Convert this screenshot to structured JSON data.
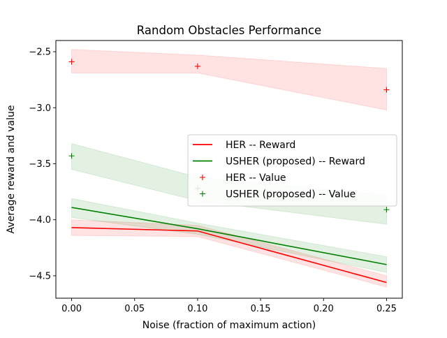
{
  "chart_data": {
    "type": "line",
    "title": "Random Obstacles Performance",
    "xlabel": "Noise (fraction of maximum action)",
    "ylabel": "Average reward and value",
    "xlim": [
      -0.0125,
      0.2625
    ],
    "ylim": [
      -4.7,
      -2.4
    ],
    "xticks": [
      0.0,
      0.05,
      0.1,
      0.15,
      0.2,
      0.25
    ],
    "xtick_labels": [
      "0.00",
      "0.05",
      "0.10",
      "0.15",
      "0.20",
      "0.25"
    ],
    "yticks": [
      -4.5,
      -4.0,
      -3.5,
      -3.0,
      -2.5
    ],
    "ytick_labels": [
      "−4.5",
      "−4.0",
      "−3.5",
      "−3.0",
      "−2.5"
    ],
    "x": [
      0.0,
      0.1,
      0.25
    ],
    "legend_position": "center-right",
    "series": [
      {
        "name": "HER -- Reward",
        "kind": "line",
        "color": "#ff0000",
        "values": [
          -4.07,
          -4.1,
          -4.56
        ],
        "lower": [
          -4.14,
          -4.15,
          -4.6
        ],
        "upper": [
          -4.0,
          -4.05,
          -4.5
        ]
      },
      {
        "name": "USHER (proposed) -- Reward",
        "kind": "line",
        "color": "#008000",
        "values": [
          -3.89,
          -4.08,
          -4.4
        ],
        "lower": [
          -3.98,
          -4.13,
          -4.47
        ],
        "upper": [
          -3.81,
          -4.03,
          -4.33
        ]
      },
      {
        "name": "HER -- Value",
        "kind": "marker",
        "marker": "+",
        "color": "#ff0000",
        "values": [
          -2.59,
          -2.63,
          -2.84
        ],
        "lower": [
          -2.69,
          -2.69,
          -3.02
        ],
        "upper": [
          -2.48,
          -2.53,
          -2.65
        ]
      },
      {
        "name": "USHER (proposed) -- Value",
        "kind": "marker",
        "marker": "+",
        "color": "#008000",
        "values": [
          -3.43,
          -3.72,
          -3.91
        ],
        "lower": [
          -3.55,
          -3.83,
          -4.04
        ],
        "upper": [
          -3.32,
          -3.62,
          -3.78
        ]
      }
    ],
    "grid": false
  }
}
